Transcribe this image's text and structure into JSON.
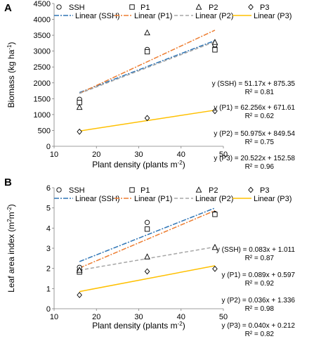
{
  "chart_data": [
    {
      "panel_label": "A",
      "type": "scatter",
      "xlabel": "Plant density (plants m",
      "xlabel_sup": "-2",
      "xlabel_tail": ")",
      "ylabel": "Biomass (kg ha",
      "ylabel_sup": "-1",
      "ylabel_tail": ")",
      "xlim": [
        10,
        50
      ],
      "ylim": [
        0,
        4500
      ],
      "xticks": [
        "10",
        "20",
        "30",
        "40",
        "50"
      ],
      "yticks": [
        "0",
        "500",
        "1000",
        "1500",
        "2000",
        "2500",
        "3000",
        "3500",
        "4000",
        "4500"
      ],
      "grid": false,
      "legend_position": "top",
      "series": [
        {
          "name": "SSH",
          "marker": "circle",
          "color": "#000000",
          "points": [
            [
              16,
              1420
            ],
            [
              16,
              1480
            ],
            [
              32,
              3000
            ],
            [
              32,
              3050
            ],
            [
              48,
              3100
            ],
            [
              48,
              3200
            ]
          ],
          "fit_name": "Linear (SSH)",
          "fit_color": "#2e75b6",
          "fit_dash": "dashdot",
          "slope": 51.17,
          "intercept": 875.35,
          "equation": "y (SSH) = 51.17x + 875.35",
          "r2": "R² = 0.81"
        },
        {
          "name": "P1",
          "marker": "square",
          "color": "#000000",
          "points": [
            [
              16,
              1380
            ],
            [
              32,
              2980
            ],
            [
              48,
              3040
            ]
          ],
          "fit_name": "Linear (P1)",
          "fit_color": "#ed7d31",
          "fit_dash": "dashdot",
          "slope": 62.256,
          "intercept": 671.61,
          "equation": "y (P1) = 62.256x + 671.61",
          "r2": "R² = 0.62"
        },
        {
          "name": "P2",
          "marker": "triangle",
          "color": "#000000",
          "points": [
            [
              16,
              1230
            ],
            [
              32,
              3580
            ],
            [
              48,
              3280
            ]
          ],
          "fit_name": "Linear (P2)",
          "fit_color": "#a6a6a6",
          "fit_dash": "dash",
          "slope": 50.975,
          "intercept": 849.54,
          "equation": "y (P2) = 50.975x + 849.54",
          "r2": "R² = 0.75"
        },
        {
          "name": "P3",
          "marker": "diamond",
          "color": "#000000",
          "points": [
            [
              16,
              460
            ],
            [
              32,
              890
            ],
            [
              48,
              1110
            ]
          ],
          "fit_name": "Linear (P3)",
          "fit_color": "#ffc000",
          "fit_dash": "solid",
          "slope": 20.522,
          "intercept": 152.58,
          "equation": "y (P3) = 20.522x + 152.58",
          "r2": "R² = 0.96"
        }
      ]
    },
    {
      "panel_label": "B",
      "type": "scatter",
      "xlabel": "Plant density (plants m",
      "xlabel_sup": "-2",
      "xlabel_tail": ")",
      "ylabel": "Leaf area index (m",
      "ylabel_sup": "2",
      "ylabel_mid": "m",
      "ylabel_sup2": "-2",
      "ylabel_tail": ")",
      "xlim": [
        10,
        50
      ],
      "ylim": [
        0,
        6
      ],
      "xticks": [
        "10",
        "20",
        "30",
        "40",
        "50"
      ],
      "yticks": [
        "0",
        "1",
        "2",
        "3",
        "4",
        "5",
        "6"
      ],
      "grid": false,
      "legend_position": "top",
      "series": [
        {
          "name": "SSH",
          "marker": "circle",
          "color": "#000000",
          "points": [
            [
              16,
              2.05
            ],
            [
              32,
              4.28
            ],
            [
              48,
              4.72
            ]
          ],
          "fit_name": "Linear (SSH)",
          "fit_color": "#2e75b6",
          "fit_dash": "dashdot",
          "slope": 0.083,
          "intercept": 1.011,
          "equation": "y (SSH) = 0.083x + 1.011",
          "r2": "R² = 0.87"
        },
        {
          "name": "P1",
          "marker": "square",
          "color": "#000000",
          "points": [
            [
              16,
              1.82
            ],
            [
              32,
              3.95
            ],
            [
              48,
              4.68
            ]
          ],
          "fit_name": "Linear (P1)",
          "fit_color": "#ed7d31",
          "fit_dash": "dashdot",
          "slope": 0.089,
          "intercept": 0.597,
          "equation": "y (P1) = 0.089x + 0.597",
          "r2": "R² = 0.92"
        },
        {
          "name": "P2",
          "marker": "triangle",
          "color": "#000000",
          "points": [
            [
              16,
              1.92
            ],
            [
              32,
              2.58
            ],
            [
              48,
              3.05
            ]
          ],
          "fit_name": "Linear (P2)",
          "fit_color": "#a6a6a6",
          "fit_dash": "dash",
          "slope": 0.036,
          "intercept": 1.336,
          "equation": "y (P2) = 0.036x + 1.336",
          "r2": "R² = 0.98"
        },
        {
          "name": "P3",
          "marker": "diamond",
          "color": "#000000",
          "points": [
            [
              16,
              0.68
            ],
            [
              32,
              1.85
            ],
            [
              48,
              1.98
            ]
          ],
          "fit_name": "Linear (P3)",
          "fit_color": "#ffc000",
          "fit_dash": "solid",
          "slope": 0.04,
          "intercept": 0.212,
          "equation": "y (P3) = 0.040x + 0.212",
          "r2": "R² = 0.82"
        }
      ]
    }
  ]
}
